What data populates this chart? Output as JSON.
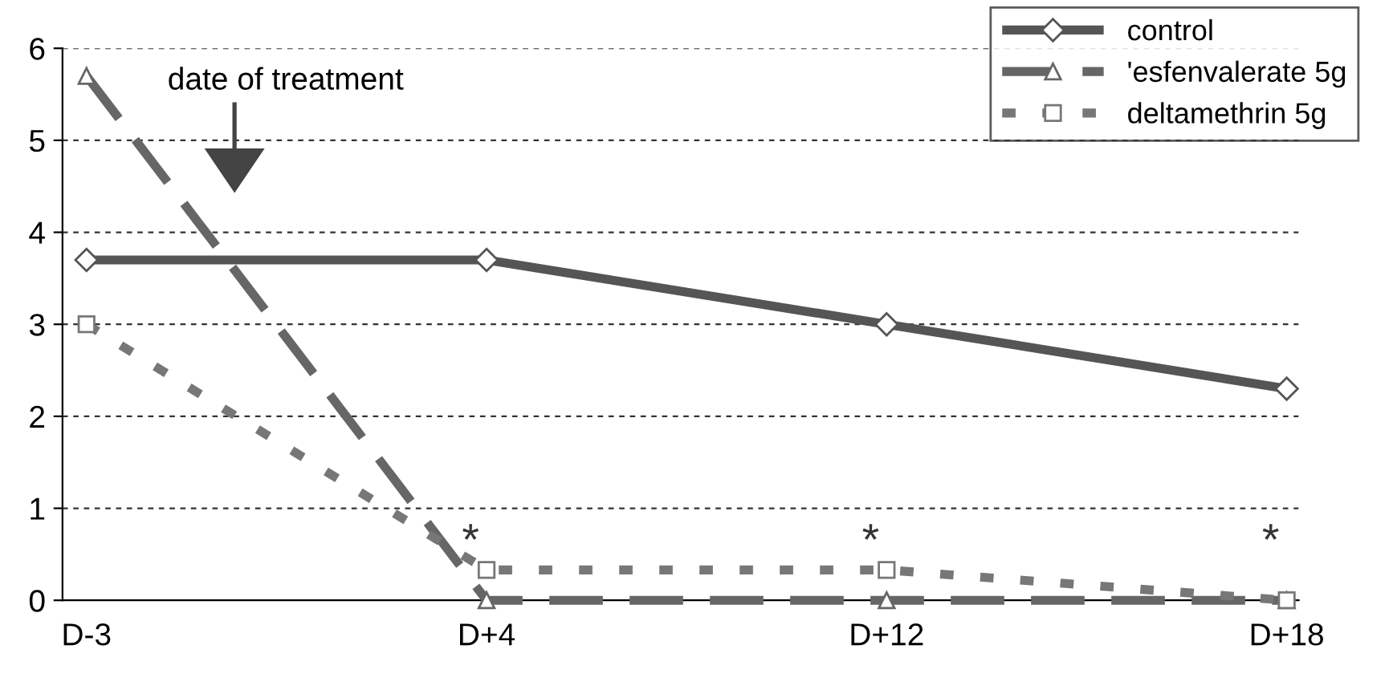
{
  "chart_data": {
    "type": "line",
    "categories": [
      "D-3",
      "D+4",
      "D+12",
      "D+18"
    ],
    "series": [
      {
        "name": "control",
        "color": "#555555",
        "values": [
          3.7,
          3.7,
          3.0,
          2.3
        ],
        "marker": "diamond",
        "line_style": "solid"
      },
      {
        "name": "'esfenvalerate 5g",
        "color": "#666666",
        "values": [
          5.7,
          0,
          0,
          0
        ],
        "marker": "triangle",
        "line_style": "dashed"
      },
      {
        "name": "deltamethrin 5g",
        "color": "#777777",
        "values": [
          3.0,
          0.33,
          0.33,
          0
        ],
        "marker": "square",
        "line_style": "dotted"
      }
    ],
    "ylim": [
      0,
      6
    ],
    "yticks": [
      0,
      1,
      2,
      3,
      4,
      5,
      6
    ],
    "grid": "y",
    "legend": "top right",
    "annotations": [
      "date of treatment",
      "*",
      "*",
      "*"
    ]
  }
}
